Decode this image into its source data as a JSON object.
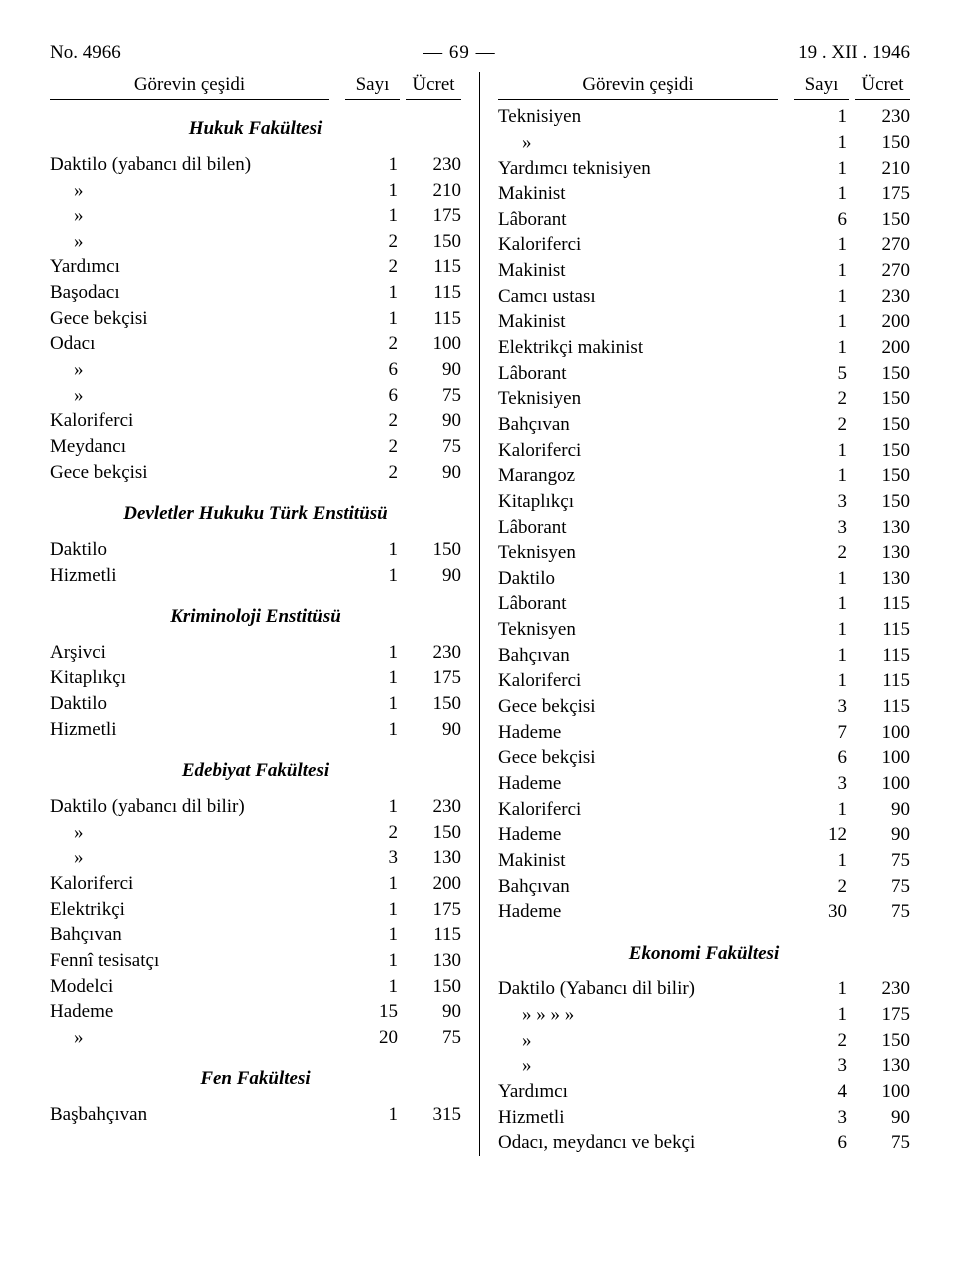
{
  "header": {
    "doc_no": "No. 4966",
    "page": "— 69 —",
    "date": "19 . XII . 1946",
    "col_gorev": "Görevin çeşidi",
    "col_sayi": "Sayı",
    "col_ucret": "Ücret"
  },
  "left": {
    "sections": [
      {
        "title": "Hukuk Fakültesi",
        "rows": [
          {
            "name": "Daktilo (yabancı dil bilen)",
            "sayi": 1,
            "ucret": 230
          },
          {
            "name": "»",
            "sayi": 1,
            "ucret": 210,
            "ditto": true
          },
          {
            "name": "»",
            "sayi": 1,
            "ucret": 175,
            "ditto": true
          },
          {
            "name": "»",
            "sayi": 2,
            "ucret": 150,
            "ditto": true
          },
          {
            "name": "Yardımcı",
            "sayi": 2,
            "ucret": 115
          },
          {
            "name": "Başodacı",
            "sayi": 1,
            "ucret": 115
          },
          {
            "name": "Gece bekçisi",
            "sayi": 1,
            "ucret": 115
          },
          {
            "name": "Odacı",
            "sayi": 2,
            "ucret": 100
          },
          {
            "name": "»",
            "sayi": 6,
            "ucret": 90,
            "ditto": true
          },
          {
            "name": "»",
            "sayi": 6,
            "ucret": 75,
            "ditto": true
          },
          {
            "name": "Kaloriferci",
            "sayi": 2,
            "ucret": 90
          },
          {
            "name": "Meydancı",
            "sayi": 2,
            "ucret": 75
          },
          {
            "name": "Gece bekçisi",
            "sayi": 2,
            "ucret": 90
          }
        ]
      },
      {
        "title": "Devletler Hukuku Türk Enstitüsü",
        "rows": [
          {
            "name": "Daktilo",
            "sayi": 1,
            "ucret": 150
          },
          {
            "name": "Hizmetli",
            "sayi": 1,
            "ucret": 90
          }
        ]
      },
      {
        "title": "Kriminoloji Enstitüsü",
        "rows": [
          {
            "name": "Arşivci",
            "sayi": 1,
            "ucret": 230
          },
          {
            "name": "Kitaplıkçı",
            "sayi": 1,
            "ucret": 175
          },
          {
            "name": "Daktilo",
            "sayi": 1,
            "ucret": 150
          },
          {
            "name": "Hizmetli",
            "sayi": 1,
            "ucret": 90
          }
        ]
      },
      {
        "title": "Edebiyat Fakültesi",
        "rows": [
          {
            "name": "Daktilo (yabancı dil bilir)",
            "sayi": 1,
            "ucret": 230
          },
          {
            "name": "»",
            "sayi": 2,
            "ucret": 150,
            "ditto": true
          },
          {
            "name": "»",
            "sayi": 3,
            "ucret": 130,
            "ditto": true
          },
          {
            "name": "Kaloriferci",
            "sayi": 1,
            "ucret": 200
          },
          {
            "name": "Elektrikçi",
            "sayi": 1,
            "ucret": 175
          },
          {
            "name": "Bahçıvan",
            "sayi": 1,
            "ucret": 115
          },
          {
            "name": "Fennî tesisatçı",
            "sayi": 1,
            "ucret": 130
          },
          {
            "name": "Modelci",
            "sayi": 1,
            "ucret": 150
          },
          {
            "name": "Hademe",
            "sayi": 15,
            "ucret": 90
          },
          {
            "name": "»",
            "sayi": 20,
            "ucret": 75,
            "ditto": true
          }
        ]
      },
      {
        "title": "Fen Fakültesi",
        "rows": [
          {
            "name": "Başbahçıvan",
            "sayi": 1,
            "ucret": 315
          }
        ]
      }
    ]
  },
  "right": {
    "sections": [
      {
        "title": null,
        "rows": [
          {
            "name": "Teknisiyen",
            "sayi": 1,
            "ucret": 230
          },
          {
            "name": "»",
            "sayi": 1,
            "ucret": 150,
            "ditto": true
          },
          {
            "name": "Yardımcı teknisiyen",
            "sayi": 1,
            "ucret": 210
          },
          {
            "name": "Makinist",
            "sayi": 1,
            "ucret": 175
          },
          {
            "name": "Lâborant",
            "sayi": 6,
            "ucret": 150
          },
          {
            "name": "Kaloriferci",
            "sayi": 1,
            "ucret": 270
          },
          {
            "name": "Makinist",
            "sayi": 1,
            "ucret": 270
          },
          {
            "name": "Camcı ustası",
            "sayi": 1,
            "ucret": 230
          },
          {
            "name": "Makinist",
            "sayi": 1,
            "ucret": 200
          },
          {
            "name": "Elektrikçi makinist",
            "sayi": 1,
            "ucret": 200
          },
          {
            "name": "Lâborant",
            "sayi": 5,
            "ucret": 150
          },
          {
            "name": "Teknisiyen",
            "sayi": 2,
            "ucret": 150
          },
          {
            "name": "Bahçıvan",
            "sayi": 2,
            "ucret": 150
          },
          {
            "name": "Kaloriferci",
            "sayi": 1,
            "ucret": 150
          },
          {
            "name": "Marangoz",
            "sayi": 1,
            "ucret": 150
          },
          {
            "name": "Kitaplıkçı",
            "sayi": 3,
            "ucret": 150
          },
          {
            "name": "Lâborant",
            "sayi": 3,
            "ucret": 130
          },
          {
            "name": "Teknisyen",
            "sayi": 2,
            "ucret": 130
          },
          {
            "name": "Daktilo",
            "sayi": 1,
            "ucret": 130
          },
          {
            "name": "Lâborant",
            "sayi": 1,
            "ucret": 115
          },
          {
            "name": "Teknisyen",
            "sayi": 1,
            "ucret": 115
          },
          {
            "name": "Bahçıvan",
            "sayi": 1,
            "ucret": 115
          },
          {
            "name": "Kaloriferci",
            "sayi": 1,
            "ucret": 115
          },
          {
            "name": "Gece bekçisi",
            "sayi": 3,
            "ucret": 115
          },
          {
            "name": "Hademe",
            "sayi": 7,
            "ucret": 100
          },
          {
            "name": "Gece bekçisi",
            "sayi": 6,
            "ucret": 100
          },
          {
            "name": "Hademe",
            "sayi": 3,
            "ucret": 100
          },
          {
            "name": "Kaloriferci",
            "sayi": 1,
            "ucret": 90
          },
          {
            "name": "Hademe",
            "sayi": 12,
            "ucret": 90
          },
          {
            "name": "Makinist",
            "sayi": 1,
            "ucret": 75
          },
          {
            "name": "Bahçıvan",
            "sayi": 2,
            "ucret": 75
          },
          {
            "name": "Hademe",
            "sayi": 30,
            "ucret": 75
          }
        ]
      },
      {
        "title": "Ekonomi Fakültesi",
        "rows": [
          {
            "name": "Daktilo (Yabancı dil bilir)",
            "sayi": 1,
            "ucret": 230
          },
          {
            "name": "»      »      »   »",
            "sayi": 1,
            "ucret": 175,
            "ditto": true
          },
          {
            "name": "»",
            "sayi": 2,
            "ucret": 150,
            "ditto": true
          },
          {
            "name": "»",
            "sayi": 3,
            "ucret": 130,
            "ditto": true
          },
          {
            "name": "Yardımcı",
            "sayi": 4,
            "ucret": 100
          },
          {
            "name": "Hizmetli",
            "sayi": 3,
            "ucret": 90
          },
          {
            "name": "Odacı, meydancı ve bekçi",
            "sayi": 6,
            "ucret": 75
          }
        ]
      }
    ]
  }
}
